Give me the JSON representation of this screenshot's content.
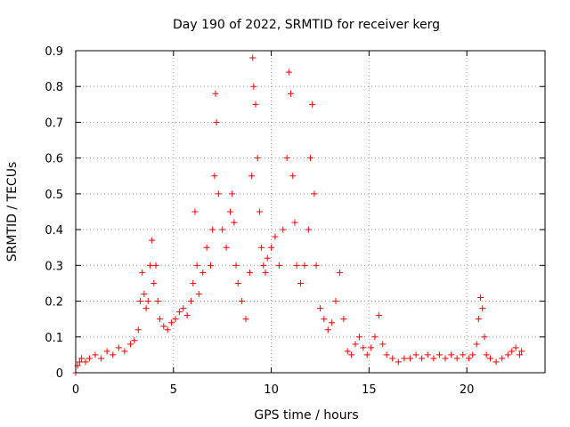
{
  "chart_data": {
    "type": "scatter",
    "title": "Day 190 of 2022, SRMTID for receiver kerg",
    "xlabel": "GPS time / hours",
    "ylabel": "SRMTID / TECUs",
    "xlim": [
      0,
      24
    ],
    "ylim": [
      0,
      0.9
    ],
    "x_ticks": [
      0,
      5,
      10,
      15,
      20
    ],
    "y_ticks": [
      0,
      0.1,
      0.2,
      0.3,
      0.4,
      0.5,
      0.6,
      0.7,
      0.8,
      0.9
    ],
    "x_tick_labels": [
      "0",
      "5",
      "10",
      "15",
      "20"
    ],
    "y_tick_labels": [
      "0",
      "0.1",
      "0.2",
      "0.3",
      "0.4",
      "0.5",
      "0.6",
      "0.7",
      "0.8",
      "0.9"
    ],
    "grid": true,
    "marker": "+",
    "series": [
      {
        "name": "SRMTID",
        "color": "#ff0000",
        "x": [
          0.0,
          0.1,
          0.2,
          0.3,
          0.5,
          0.7,
          1.0,
          1.3,
          1.6,
          1.9,
          2.2,
          2.5,
          2.8,
          3.0,
          3.2,
          3.3,
          3.4,
          3.5,
          3.6,
          3.7,
          3.8,
          3.9,
          4.0,
          4.1,
          4.2,
          4.3,
          4.5,
          4.7,
          4.9,
          5.1,
          5.3,
          5.5,
          5.7,
          5.9,
          6.0,
          6.1,
          6.2,
          6.3,
          6.5,
          6.7,
          6.9,
          7.0,
          7.1,
          7.15,
          7.2,
          7.3,
          7.5,
          7.7,
          7.9,
          8.0,
          8.1,
          8.2,
          8.3,
          8.5,
          8.7,
          8.9,
          9.0,
          9.05,
          9.1,
          9.2,
          9.3,
          9.4,
          9.5,
          9.6,
          9.7,
          9.8,
          10.0,
          10.2,
          10.4,
          10.6,
          10.8,
          10.9,
          11.0,
          11.1,
          11.2,
          11.3,
          11.5,
          11.7,
          11.9,
          12.0,
          12.1,
          12.2,
          12.3,
          12.5,
          12.7,
          12.9,
          13.1,
          13.3,
          13.5,
          13.7,
          13.9,
          14.1,
          14.3,
          14.5,
          14.7,
          14.9,
          15.1,
          15.3,
          15.5,
          15.7,
          15.9,
          16.2,
          16.5,
          16.8,
          17.1,
          17.4,
          17.7,
          18.0,
          18.3,
          18.6,
          18.9,
          19.2,
          19.5,
          19.8,
          20.1,
          20.3,
          20.5,
          20.6,
          20.7,
          20.8,
          20.9,
          21.0,
          21.2,
          21.5,
          21.8,
          22.1,
          22.3,
          22.5,
          22.7,
          22.8
        ],
        "y": [
          0.0,
          0.02,
          0.03,
          0.04,
          0.03,
          0.04,
          0.05,
          0.04,
          0.06,
          0.05,
          0.07,
          0.06,
          0.08,
          0.09,
          0.12,
          0.2,
          0.28,
          0.22,
          0.18,
          0.2,
          0.3,
          0.37,
          0.25,
          0.3,
          0.2,
          0.15,
          0.13,
          0.12,
          0.14,
          0.15,
          0.17,
          0.18,
          0.16,
          0.2,
          0.25,
          0.45,
          0.3,
          0.22,
          0.28,
          0.35,
          0.3,
          0.4,
          0.55,
          0.78,
          0.7,
          0.5,
          0.4,
          0.35,
          0.45,
          0.5,
          0.42,
          0.3,
          0.25,
          0.2,
          0.15,
          0.28,
          0.55,
          0.88,
          0.8,
          0.75,
          0.6,
          0.45,
          0.35,
          0.3,
          0.28,
          0.32,
          0.35,
          0.38,
          0.3,
          0.4,
          0.6,
          0.84,
          0.78,
          0.55,
          0.42,
          0.3,
          0.25,
          0.3,
          0.4,
          0.6,
          0.75,
          0.5,
          0.3,
          0.18,
          0.15,
          0.12,
          0.14,
          0.2,
          0.28,
          0.15,
          0.06,
          0.05,
          0.08,
          0.1,
          0.07,
          0.05,
          0.07,
          0.1,
          0.16,
          0.08,
          0.05,
          0.04,
          0.03,
          0.04,
          0.04,
          0.05,
          0.04,
          0.05,
          0.04,
          0.05,
          0.04,
          0.05,
          0.04,
          0.05,
          0.04,
          0.05,
          0.08,
          0.15,
          0.21,
          0.18,
          0.1,
          0.05,
          0.04,
          0.03,
          0.04,
          0.05,
          0.06,
          0.07,
          0.05,
          0.06
        ]
      }
    ]
  }
}
